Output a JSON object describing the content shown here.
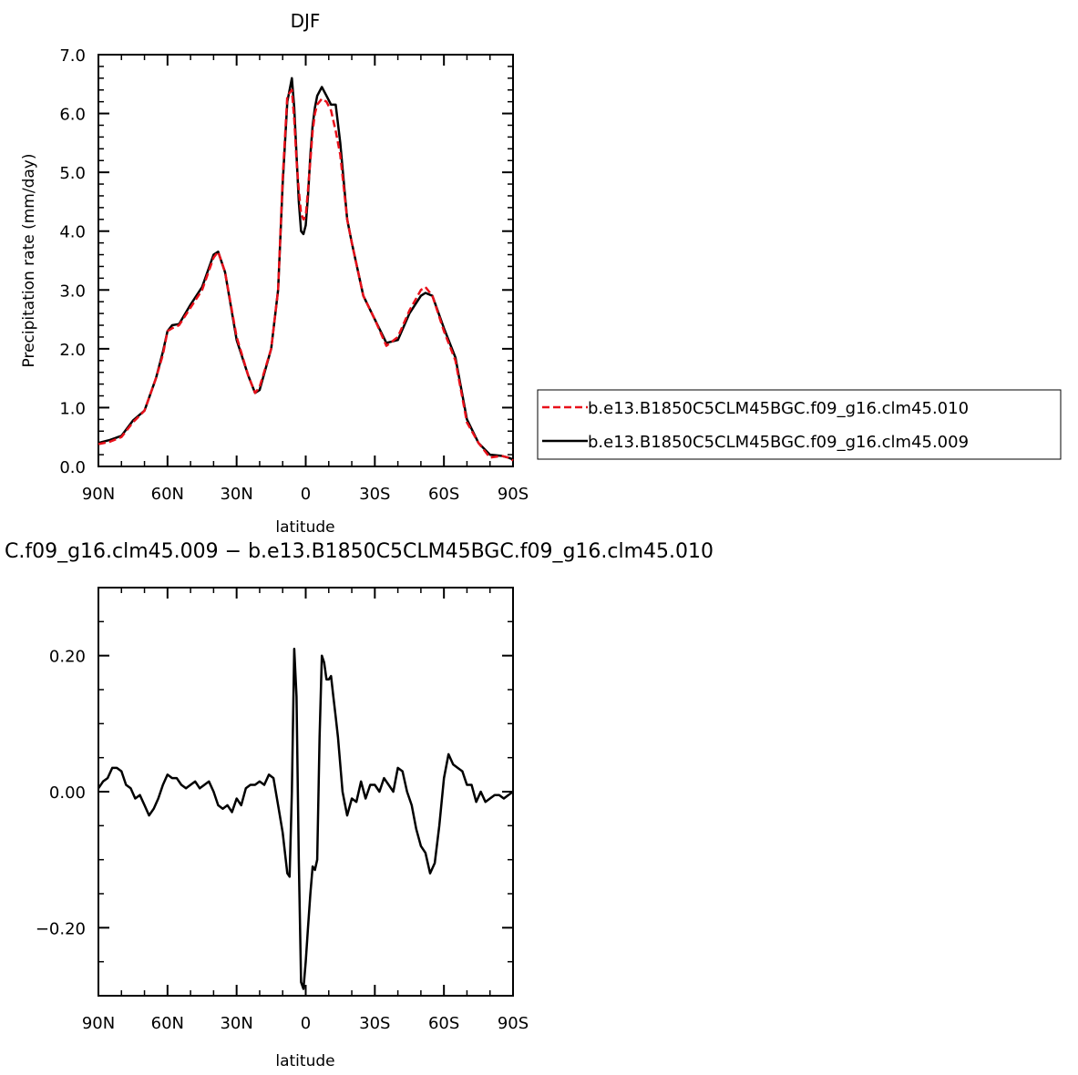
{
  "chart_data": [
    {
      "type": "line",
      "title": "DJF",
      "xlabel": "latitude",
      "ylabel": "Precipitation rate (mm/day)",
      "xlim": [
        90,
        -90
      ],
      "ylim": [
        0,
        7
      ],
      "x_ticks": [
        90,
        60,
        30,
        0,
        -30,
        -60,
        -90
      ],
      "x_tick_labels": [
        "90N",
        "60N",
        "30N",
        "0",
        "30S",
        "60S",
        "90S"
      ],
      "y_ticks": [
        0,
        1,
        2,
        3,
        4,
        5,
        6,
        7
      ],
      "y_tick_labels": [
        "0.0",
        "1.0",
        "2.0",
        "3.0",
        "4.0",
        "5.0",
        "6.0",
        "7.0"
      ],
      "grid": false,
      "legend_position": "right",
      "series": [
        {
          "name": "b.e13.B1850C5CLM45BGC.f09_g16.clm45.010",
          "color": "#e8101a",
          "dash": "dashed",
          "x": [
            90,
            85,
            80,
            75,
            70,
            65,
            62,
            60,
            58,
            55,
            50,
            45,
            40,
            38,
            35,
            30,
            25,
            22,
            20,
            15,
            12,
            10,
            8,
            6,
            5,
            4,
            3,
            2,
            1,
            0,
            -1,
            -2,
            -3,
            -4,
            -5,
            -7,
            -9,
            -11,
            -13,
            -15,
            -18,
            -20,
            -25,
            -30,
            -35,
            -40,
            -45,
            -50,
            -52,
            -55,
            -60,
            -65,
            -70,
            -75,
            -80,
            -85,
            -88,
            -90
          ],
          "y": [
            0.38,
            0.42,
            0.5,
            0.75,
            0.95,
            1.5,
            1.9,
            2.3,
            2.35,
            2.4,
            2.7,
            3.0,
            3.55,
            3.65,
            3.3,
            2.2,
            1.55,
            1.25,
            1.35,
            2.0,
            3.0,
            4.9,
            6.3,
            6.4,
            5.9,
            5.2,
            4.7,
            4.3,
            4.2,
            4.25,
            4.7,
            5.2,
            5.7,
            6.0,
            6.15,
            6.25,
            6.2,
            6.05,
            5.7,
            5.3,
            4.2,
            3.8,
            2.9,
            2.5,
            2.05,
            2.2,
            2.65,
            3.0,
            3.05,
            2.9,
            2.3,
            1.8,
            0.75,
            0.4,
            0.15,
            0.18,
            0.15,
            0.1
          ]
        },
        {
          "name": "b.e13.B1850C5CLM45BGC.f09_g16.clm45.009",
          "color": "#000000",
          "dash": "solid",
          "x": [
            90,
            85,
            80,
            75,
            70,
            65,
            62,
            60,
            58,
            55,
            50,
            45,
            40,
            38,
            35,
            30,
            25,
            22,
            20,
            15,
            12,
            10,
            8,
            6,
            5,
            4,
            3,
            2,
            1,
            0,
            -1,
            -2,
            -3,
            -4,
            -5,
            -7,
            -9,
            -11,
            -13,
            -15,
            -18,
            -20,
            -25,
            -30,
            -35,
            -40,
            -45,
            -50,
            -52,
            -55,
            -60,
            -65,
            -70,
            -75,
            -80,
            -85,
            -88,
            -90
          ],
          "y": [
            0.4,
            0.45,
            0.52,
            0.78,
            0.95,
            1.5,
            1.95,
            2.3,
            2.4,
            2.42,
            2.75,
            3.05,
            3.6,
            3.65,
            3.3,
            2.15,
            1.55,
            1.25,
            1.3,
            2.0,
            3.0,
            4.8,
            6.2,
            6.6,
            6.1,
            5.3,
            4.5,
            4.0,
            3.95,
            4.1,
            4.6,
            5.3,
            5.8,
            6.1,
            6.3,
            6.45,
            6.3,
            6.15,
            6.15,
            5.5,
            4.2,
            3.8,
            2.9,
            2.5,
            2.1,
            2.15,
            2.6,
            2.9,
            2.95,
            2.9,
            2.35,
            1.85,
            0.8,
            0.4,
            0.2,
            0.18,
            0.15,
            0.12
          ]
        }
      ]
    },
    {
      "type": "line",
      "title": "C.f09_g16.clm45.009 − b.e13.B1850C5CLM45BGC.f09_g16.clm45.010",
      "xlabel": "latitude",
      "ylabel": "",
      "xlim": [
        90,
        -90
      ],
      "ylim": [
        -0.3,
        0.3
      ],
      "x_ticks": [
        90,
        60,
        30,
        0,
        -30,
        -60,
        -90
      ],
      "x_tick_labels": [
        "90N",
        "60N",
        "30N",
        "0",
        "30S",
        "60S",
        "90S"
      ],
      "y_ticks": [
        -0.2,
        0,
        0.2
      ],
      "y_tick_labels": [
        "−0.20",
        "0.00",
        "0.20"
      ],
      "grid": false,
      "series": [
        {
          "color": "#000000",
          "dash": "solid",
          "x": [
            90,
            88,
            86,
            84,
            82,
            80,
            78,
            76,
            74,
            72,
            70,
            68,
            66,
            64,
            62,
            60,
            58,
            56,
            54,
            52,
            50,
            48,
            46,
            44,
            42,
            40,
            38,
            36,
            34,
            32,
            30,
            28,
            26,
            24,
            22,
            20,
            18,
            16,
            14,
            12,
            10,
            8,
            7,
            6,
            5,
            4,
            3,
            2,
            1,
            0,
            -1,
            -2,
            -3,
            -4,
            -5,
            -6,
            -7,
            -8,
            -9,
            -10,
            -11,
            -12,
            -13,
            -14,
            -16,
            -18,
            -20,
            -22,
            -24,
            -26,
            -28,
            -30,
            -32,
            -34,
            -36,
            -38,
            -40,
            -42,
            -44,
            -46,
            -48,
            -50,
            -52,
            -54,
            -56,
            -58,
            -60,
            -62,
            -64,
            -66,
            -68,
            -70,
            -72,
            -74,
            -76,
            -78,
            -80,
            -82,
            -84,
            -86,
            -88,
            -90
          ],
          "y": [
            0.005,
            0.015,
            0.02,
            0.035,
            0.035,
            0.03,
            0.01,
            0.005,
            -0.01,
            -0.005,
            -0.02,
            -0.035,
            -0.025,
            -0.01,
            0.01,
            0.025,
            0.02,
            0.02,
            0.01,
            0.005,
            0.01,
            0.015,
            0.005,
            0.01,
            0.015,
            0.0,
            -0.02,
            -0.025,
            -0.02,
            -0.03,
            -0.01,
            -0.02,
            0.005,
            0.01,
            0.01,
            0.015,
            0.01,
            0.025,
            0.02,
            -0.02,
            -0.06,
            -0.12,
            -0.125,
            0.0,
            0.21,
            0.14,
            -0.1,
            -0.28,
            -0.29,
            -0.25,
            -0.2,
            -0.15,
            -0.11,
            -0.115,
            -0.1,
            0.08,
            0.2,
            0.19,
            0.165,
            0.165,
            0.17,
            0.14,
            0.11,
            0.08,
            0.0,
            -0.035,
            -0.01,
            -0.015,
            0.015,
            -0.01,
            0.01,
            0.01,
            0.0,
            0.02,
            0.01,
            0.0,
            0.035,
            0.03,
            0.0,
            -0.02,
            -0.055,
            -0.08,
            -0.09,
            -0.12,
            -0.105,
            -0.05,
            0.02,
            0.055,
            0.04,
            0.035,
            0.03,
            0.01,
            0.01,
            -0.015,
            0.0,
            -0.015,
            -0.01,
            -0.005,
            -0.005,
            -0.01,
            -0.005,
            0.0
          ]
        }
      ]
    }
  ]
}
